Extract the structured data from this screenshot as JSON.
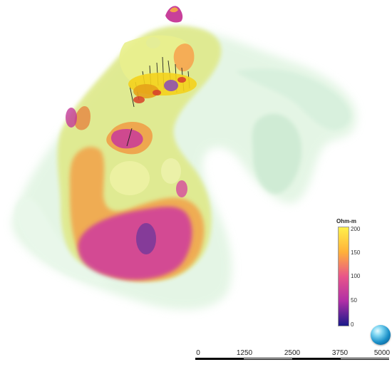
{
  "scene": {
    "description_icon": "3d-resistivity-isosurface"
  },
  "colorbar": {
    "title": "Ohm-m",
    "ticks": [
      "200",
      "150",
      "100",
      "50",
      "0"
    ],
    "colors": [
      "#fff04a",
      "#ffb13a",
      "#e8558a",
      "#b02fa6",
      "#1a1a8a"
    ]
  },
  "scalebar": {
    "labels": [
      "0",
      "1250",
      "2500",
      "3750",
      "5000"
    ]
  },
  "orientation": {
    "icon": "orientation-sphere-icon"
  }
}
